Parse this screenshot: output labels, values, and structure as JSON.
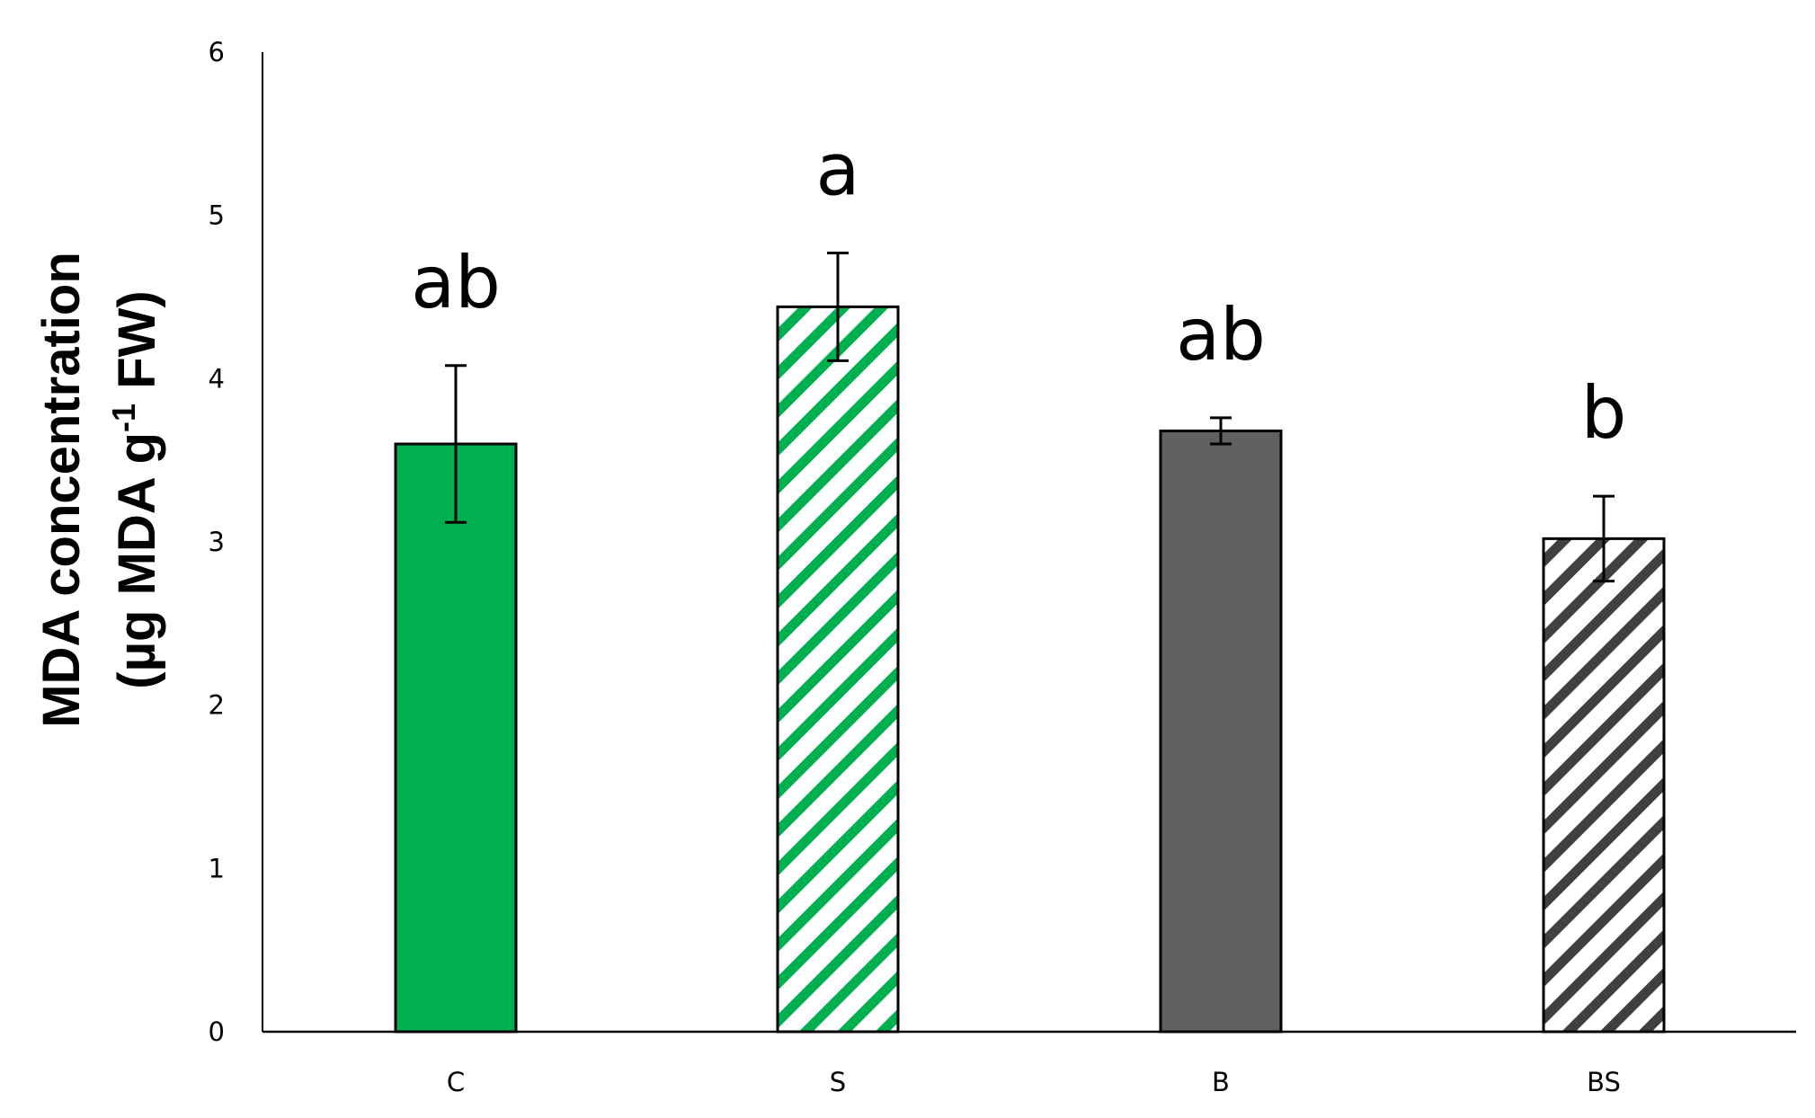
{
  "chart_data": {
    "type": "bar",
    "categories": [
      "C",
      "S",
      "B",
      "BS"
    ],
    "values": [
      3.6,
      4.44,
      3.68,
      3.02
    ],
    "errors": [
      0.48,
      0.33,
      0.08,
      0.26
    ],
    "significance_letters": [
      "ab",
      "a",
      "ab",
      "b"
    ],
    "fill_patterns": [
      "solid",
      "diagonal-stripes",
      "solid",
      "diagonal-stripes"
    ],
    "colors": [
      "#00b050",
      "#00b050",
      "#606060",
      "#404040"
    ],
    "ylim": [
      0,
      6
    ],
    "yticks": [
      0,
      1,
      2,
      3,
      4,
      5,
      6
    ],
    "ylabel_line1": "MDA concentration",
    "ylabel_line2_prefix": "(µg MDA g",
    "ylabel_line2_sup": "-1",
    "ylabel_line2_suffix": " FW)",
    "xlabel": "",
    "title": "",
    "grid": false,
    "legend": "none"
  }
}
